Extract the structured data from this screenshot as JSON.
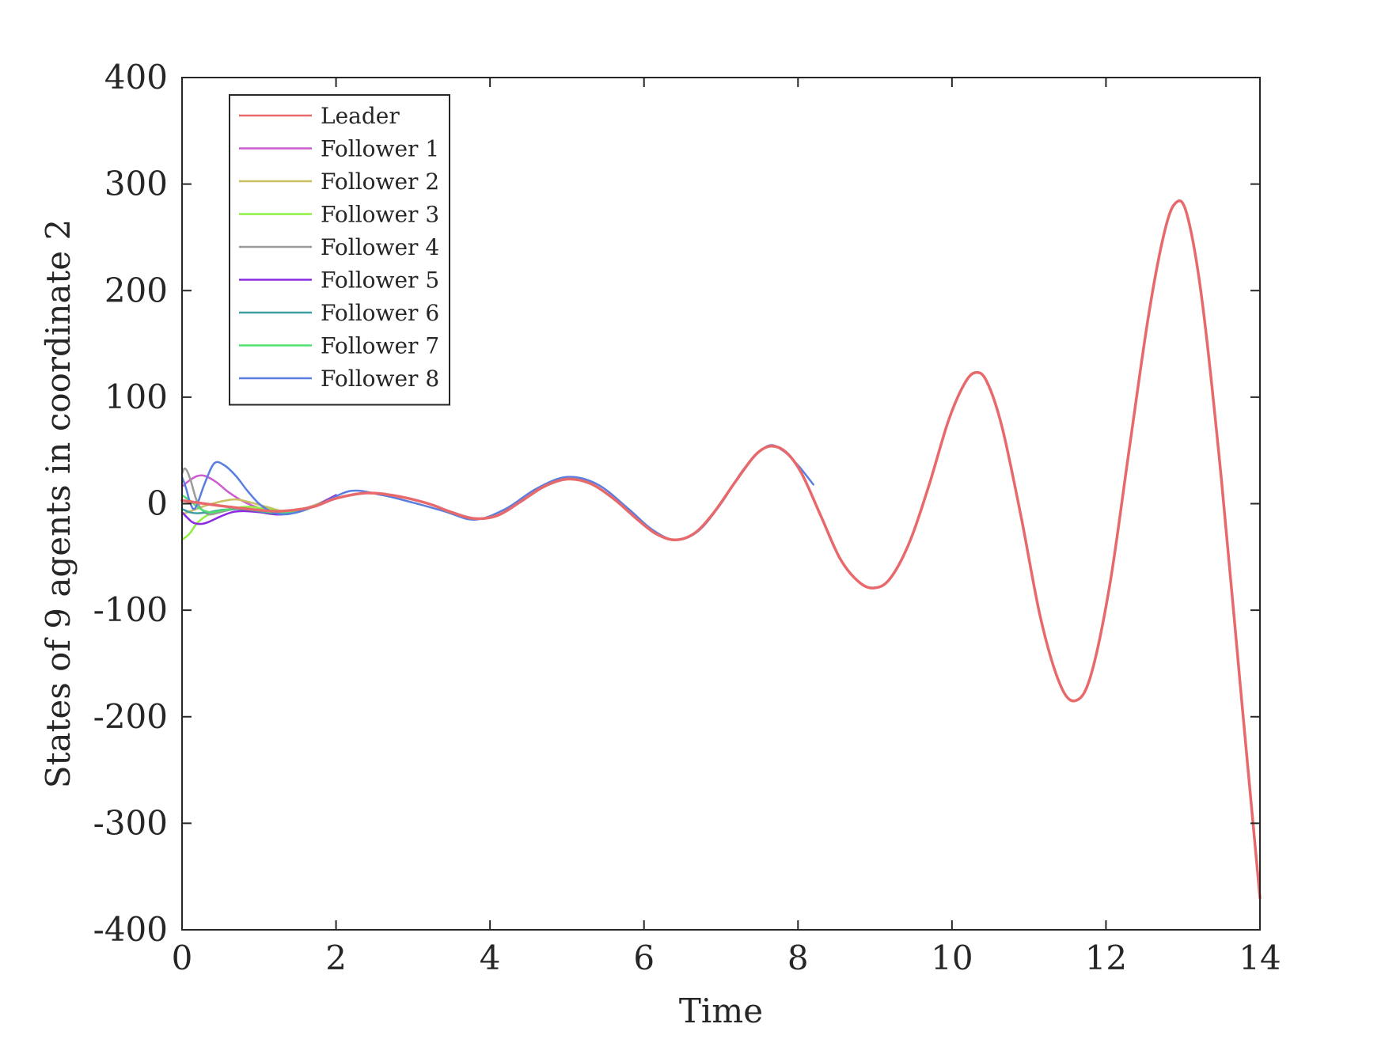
{
  "chart_data": {
    "type": "line",
    "title": "",
    "xlabel": "Time",
    "ylabel": "States of 9 agents in coordinate 2",
    "xlim": [
      0,
      14
    ],
    "ylim": [
      -400,
      400
    ],
    "xticks": [
      0,
      2,
      4,
      6,
      8,
      10,
      12,
      14
    ],
    "yticks": [
      -400,
      -300,
      -200,
      -100,
      0,
      100,
      200,
      300,
      400
    ],
    "grid": false,
    "legend_position": "top-left",
    "series": [
      {
        "name": "Leader",
        "color": "#e8696b",
        "x": [
          0,
          0.5,
          1.0,
          1.3,
          1.7,
          2.0,
          2.4,
          2.8,
          3.2,
          3.5,
          3.8,
          4.1,
          4.4,
          4.7,
          5.0,
          5.3,
          5.6,
          5.9,
          6.15,
          6.4,
          6.65,
          6.9,
          7.2,
          7.45,
          7.65,
          7.85,
          8.05,
          8.3,
          8.55,
          8.8,
          9.0,
          9.2,
          9.45,
          9.7,
          9.95,
          10.15,
          10.3,
          10.45,
          10.65,
          10.9,
          11.15,
          11.4,
          11.6,
          11.8,
          12.05,
          12.3,
          12.55,
          12.75,
          12.9,
          13.05,
          13.25,
          13.5,
          13.75,
          14.0
        ],
        "y": [
          3,
          -2,
          -6,
          -7,
          -3,
          5,
          10,
          7,
          0,
          -8,
          -14,
          -11,
          2,
          16,
          23,
          19,
          5,
          -14,
          -28,
          -34,
          -28,
          -9,
          22,
          46,
          54,
          48,
          28,
          -12,
          -52,
          -74,
          -79,
          -70,
          -36,
          17,
          77,
          111,
          123,
          115,
          72,
          -13,
          -107,
          -169,
          -185,
          -162,
          -76,
          50,
          175,
          252,
          282,
          272,
          190,
          22,
          -175,
          -370
        ]
      },
      {
        "name": "Follower 1",
        "color": "#cc5cd0",
        "x": [
          0,
          0.1,
          0.2,
          0.3,
          0.45,
          0.6,
          0.8,
          1.0,
          1.3,
          1.7,
          2.0
        ],
        "y": [
          16,
          22,
          26,
          26,
          20,
          11,
          2,
          -4,
          -9,
          -2,
          8
        ]
      },
      {
        "name": "Follower 2",
        "color": "#c8c060",
        "x": [
          0,
          0.15,
          0.3,
          0.5,
          0.7,
          0.9,
          1.1,
          1.4,
          1.7,
          2.0
        ],
        "y": [
          -10,
          -6,
          -2,
          2,
          4,
          1,
          -3,
          -8,
          -2,
          7
        ]
      },
      {
        "name": "Follower 3",
        "color": "#8ff040",
        "x": [
          0,
          0.1,
          0.2,
          0.35,
          0.5,
          0.7,
          0.9,
          1.2,
          1.5,
          1.8
        ],
        "y": [
          -34,
          -28,
          -18,
          -10,
          -7,
          -4,
          -3,
          -6,
          -7,
          0
        ]
      },
      {
        "name": "Follower 4",
        "color": "#9a9a9a",
        "x": [
          0,
          0.03,
          0.07,
          0.12,
          0.18,
          0.25,
          0.35,
          0.5,
          0.7,
          1.0,
          1.3,
          1.7,
          2.0
        ],
        "y": [
          28,
          33,
          30,
          20,
          5,
          -5,
          -10,
          -8,
          -5,
          -7,
          -10,
          -3,
          8
        ]
      },
      {
        "name": "Follower 5",
        "color": "#8a2be2",
        "x": [
          0,
          0.08,
          0.15,
          0.25,
          0.35,
          0.5,
          0.65,
          0.8,
          1.0,
          1.3,
          1.7,
          2.0
        ],
        "y": [
          -8,
          -14,
          -18,
          -19,
          -17,
          -12,
          -8,
          -7,
          -8,
          -10,
          -3,
          8
        ]
      },
      {
        "name": "Follower 6",
        "color": "#40a0a0",
        "x": [
          0,
          0.1,
          0.2,
          0.35,
          0.5,
          0.7,
          0.9,
          1.2,
          1.5,
          1.8
        ],
        "y": [
          -5,
          -8,
          -9,
          -8,
          -6,
          -5,
          -6,
          -9,
          -8,
          0
        ]
      },
      {
        "name": "Follower 7",
        "color": "#50e070",
        "x": [
          0,
          0.1,
          0.2,
          0.3,
          0.4,
          0.55,
          0.7,
          0.9,
          1.2,
          1.5,
          1.8
        ],
        "y": [
          8,
          3,
          -3,
          -7,
          -8,
          -6,
          -4,
          -5,
          -8,
          -7,
          0
        ]
      },
      {
        "name": "Follower 8",
        "color": "#5a7ee0",
        "x": [
          0,
          0.05,
          0.1,
          0.15,
          0.2,
          0.3,
          0.42,
          0.55,
          0.7,
          0.85,
          1.0,
          1.15,
          1.3,
          1.5,
          1.8,
          2.2,
          2.6,
          3.0,
          3.4,
          3.8,
          4.2,
          4.6,
          5.0,
          5.4,
          5.8,
          6.1,
          6.4,
          6.7,
          7.0,
          7.3,
          7.6,
          7.8,
          8.0,
          8.2
        ],
        "y": [
          25,
          15,
          2,
          -5,
          0,
          20,
          38,
          36,
          26,
          12,
          0,
          -7,
          -10,
          -8,
          0,
          12,
          8,
          1,
          -7,
          -15,
          -5,
          14,
          25,
          18,
          -5,
          -24,
          -34,
          -26,
          0,
          33,
          54,
          50,
          36,
          18
        ]
      }
    ]
  }
}
